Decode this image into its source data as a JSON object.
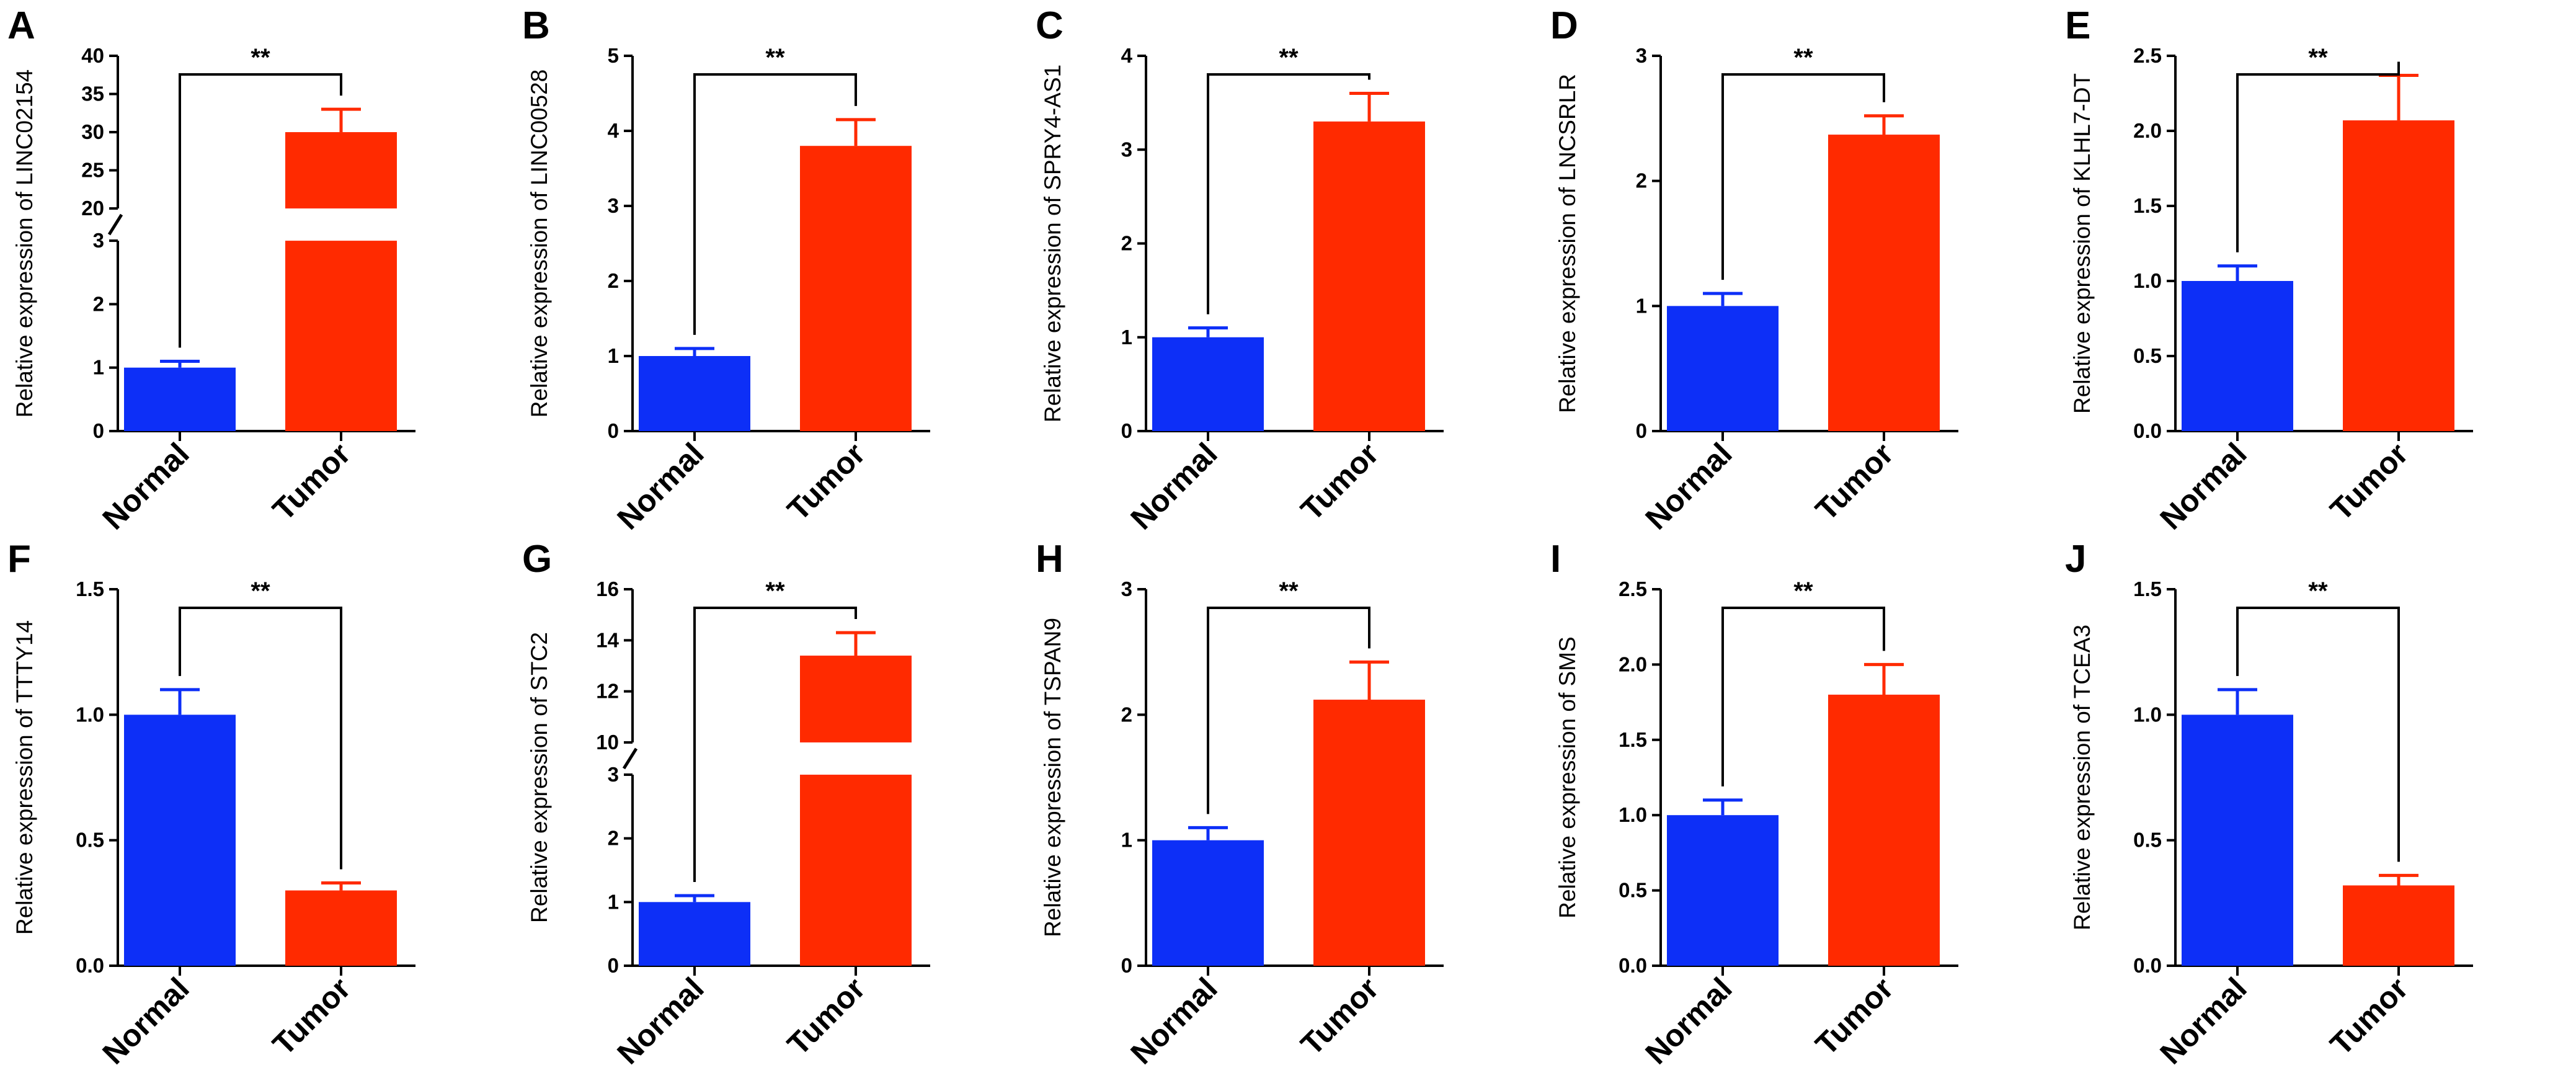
{
  "chart_data": [
    {
      "type": "bar",
      "panel": "A",
      "ylabel": "Relative expression of LINC02154",
      "categories": [
        "Normal",
        "Tumor"
      ],
      "values": [
        1.0,
        30.0
      ],
      "errors": [
        0.1,
        3.0
      ],
      "colors": [
        "#0d2ff7",
        "#ff2a00"
      ],
      "significance": "**",
      "ylim": [
        0,
        40
      ],
      "yticks": [
        "0",
        "1",
        "2",
        "3",
        "20",
        "25",
        "30",
        "35",
        "40"
      ],
      "broken_axis": {
        "lower": [
          0,
          3
        ],
        "upper": [
          20,
          40
        ]
      }
    },
    {
      "type": "bar",
      "panel": "B",
      "ylabel": "Relative expression of LINC00528",
      "categories": [
        "Normal",
        "Tumor"
      ],
      "values": [
        1.0,
        3.8
      ],
      "errors": [
        0.1,
        0.35
      ],
      "colors": [
        "#0d2ff7",
        "#ff2a00"
      ],
      "significance": "**",
      "ylim": [
        0,
        5
      ],
      "yticks": [
        "0",
        "1",
        "2",
        "3",
        "4",
        "5"
      ]
    },
    {
      "type": "bar",
      "panel": "C",
      "ylabel": "Relative expression of SPRY4-AS1",
      "categories": [
        "Normal",
        "Tumor"
      ],
      "values": [
        1.0,
        3.3
      ],
      "errors": [
        0.1,
        0.3
      ],
      "colors": [
        "#0d2ff7",
        "#ff2a00"
      ],
      "significance": "**",
      "ylim": [
        0,
        4
      ],
      "yticks": [
        "0",
        "1",
        "2",
        "3",
        "4"
      ]
    },
    {
      "type": "bar",
      "panel": "D",
      "ylabel": "Relative expression of LNCSRLR",
      "categories": [
        "Normal",
        "Tumor"
      ],
      "values": [
        1.0,
        2.37
      ],
      "errors": [
        0.1,
        0.15
      ],
      "colors": [
        "#0d2ff7",
        "#ff2a00"
      ],
      "significance": "**",
      "ylim": [
        0,
        3
      ],
      "yticks": [
        "0",
        "1",
        "2",
        "3"
      ]
    },
    {
      "type": "bar",
      "panel": "E",
      "ylabel": "Relative expression of KLHL7-DT",
      "categories": [
        "Normal",
        "Tumor"
      ],
      "values": [
        1.0,
        2.07
      ],
      "errors": [
        0.1,
        0.3
      ],
      "colors": [
        "#0d2ff7",
        "#ff2a00"
      ],
      "significance": "**",
      "ylim": [
        0,
        2.5
      ],
      "yticks": [
        "0.0",
        "0.5",
        "1.0",
        "1.5",
        "2.0",
        "2.5"
      ]
    },
    {
      "type": "bar",
      "panel": "F",
      "ylabel": "Relative expression of TTTY14",
      "categories": [
        "Normal",
        "Tumor"
      ],
      "values": [
        1.0,
        0.3
      ],
      "errors": [
        0.1,
        0.03
      ],
      "colors": [
        "#0d2ff7",
        "#ff2a00"
      ],
      "significance": "**",
      "ylim": [
        0,
        1.5
      ],
      "yticks": [
        "0.0",
        "0.5",
        "1.0",
        "1.5"
      ]
    },
    {
      "type": "bar",
      "panel": "G",
      "ylabel": "Relative expression of STC2",
      "categories": [
        "Normal",
        "Tumor"
      ],
      "values": [
        1.0,
        13.4
      ],
      "errors": [
        0.1,
        0.9
      ],
      "colors": [
        "#0d2ff7",
        "#ff2a00"
      ],
      "significance": "**",
      "ylim": [
        0,
        16
      ],
      "yticks": [
        "0",
        "1",
        "2",
        "3",
        "10",
        "12",
        "14",
        "16"
      ],
      "broken_axis": {
        "lower": [
          0,
          3
        ],
        "upper": [
          10,
          16
        ]
      }
    },
    {
      "type": "bar",
      "panel": "H",
      "ylabel": "Relative expression of TSPAN9",
      "categories": [
        "Normal",
        "Tumor"
      ],
      "values": [
        1.0,
        2.12
      ],
      "errors": [
        0.1,
        0.3
      ],
      "colors": [
        "#0d2ff7",
        "#ff2a00"
      ],
      "significance": "**",
      "ylim": [
        0,
        3
      ],
      "yticks": [
        "0",
        "1",
        "2",
        "3"
      ]
    },
    {
      "type": "bar",
      "panel": "I",
      "ylabel": "Relative expression of SMS",
      "categories": [
        "Normal",
        "Tumor"
      ],
      "values": [
        1.0,
        1.8
      ],
      "errors": [
        0.1,
        0.2
      ],
      "colors": [
        "#0d2ff7",
        "#ff2a00"
      ],
      "significance": "**",
      "ylim": [
        0,
        2.5
      ],
      "yticks": [
        "0.0",
        "0.5",
        "1.0",
        "1.5",
        "2.0",
        "2.5"
      ]
    },
    {
      "type": "bar",
      "panel": "J",
      "ylabel": "Relative expression of TCEA3",
      "categories": [
        "Normal",
        "Tumor"
      ],
      "values": [
        1.0,
        0.32
      ],
      "errors": [
        0.1,
        0.04
      ],
      "colors": [
        "#0d2ff7",
        "#ff2a00"
      ],
      "significance": "**",
      "ylim": [
        0,
        1.5
      ],
      "yticks": [
        "0.0",
        "0.5",
        "1.0",
        "1.5"
      ]
    }
  ]
}
